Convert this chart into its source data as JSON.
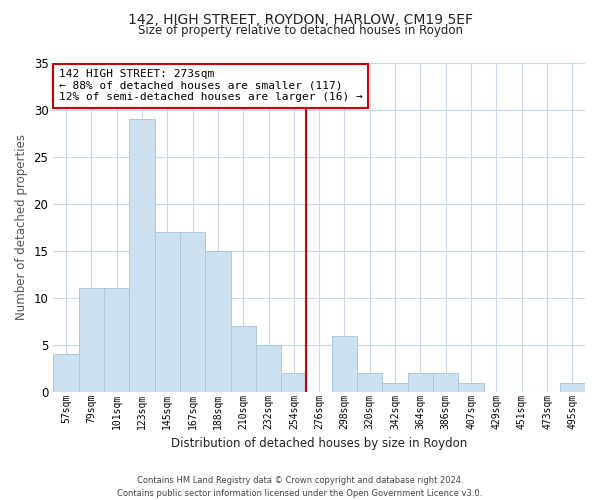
{
  "title": "142, HIGH STREET, ROYDON, HARLOW, CM19 5EF",
  "subtitle": "Size of property relative to detached houses in Roydon",
  "xlabel": "Distribution of detached houses by size in Roydon",
  "ylabel": "Number of detached properties",
  "bar_labels": [
    "57sqm",
    "79sqm",
    "101sqm",
    "123sqm",
    "145sqm",
    "167sqm",
    "188sqm",
    "210sqm",
    "232sqm",
    "254sqm",
    "276sqm",
    "298sqm",
    "320sqm",
    "342sqm",
    "364sqm",
    "386sqm",
    "407sqm",
    "429sqm",
    "451sqm",
    "473sqm",
    "495sqm"
  ],
  "bar_values": [
    4,
    11,
    11,
    29,
    17,
    17,
    15,
    7,
    5,
    2,
    0,
    6,
    2,
    1,
    2,
    2,
    1,
    0,
    0,
    0,
    1
  ],
  "bar_color": "#cce0f0",
  "bar_edge_color": "#aac8e0",
  "vline_index": 10,
  "vline_color": "#cc0000",
  "annotation_text_line1": "142 HIGH STREET: 273sqm",
  "annotation_text_line2": "← 88% of detached houses are smaller (117)",
  "annotation_text_line3": "12% of semi-detached houses are larger (16) →",
  "annotation_box_color": "#ffffff",
  "annotation_box_edge": "#cc0000",
  "ylim": [
    0,
    35
  ],
  "yticks": [
    0,
    5,
    10,
    15,
    20,
    25,
    30,
    35
  ],
  "footer_line1": "Contains HM Land Registry data © Crown copyright and database right 2024.",
  "footer_line2": "Contains public sector information licensed under the Open Government Licence v3.0.",
  "bg_color": "#ffffff",
  "grid_color": "#c8d8e8",
  "title_fontsize": 10,
  "subtitle_fontsize": 8.5,
  "ylabel_fontsize": 8.5,
  "xlabel_fontsize": 8.5,
  "annot_fontsize": 8,
  "footer_fontsize": 6
}
